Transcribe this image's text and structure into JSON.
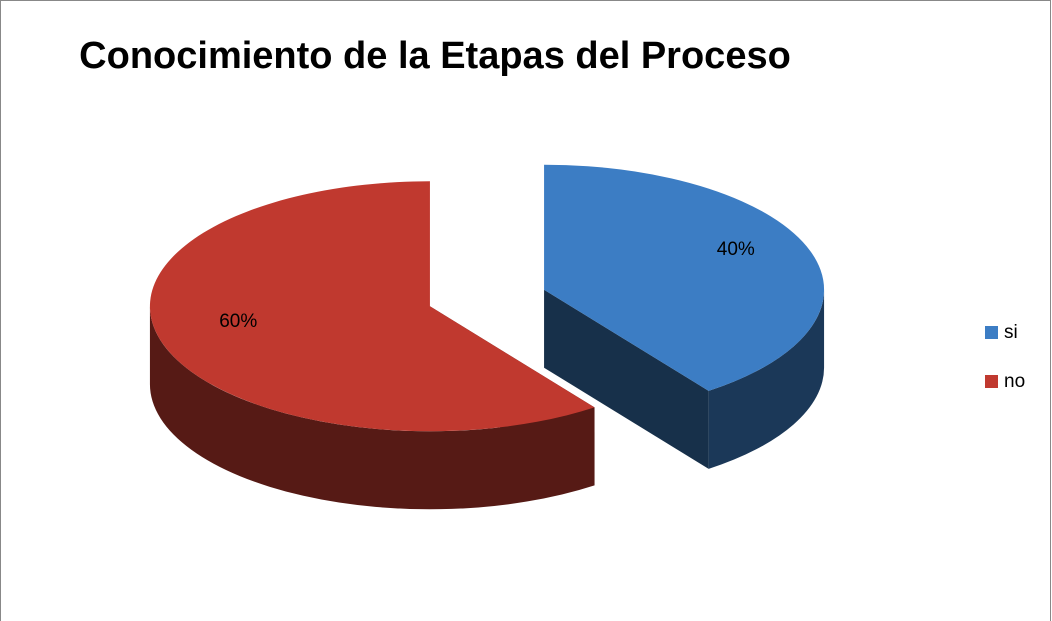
{
  "chart_data": {
    "type": "pie",
    "title": "Conocimiento de la Etapas del Proceso",
    "categories": [
      "si",
      "no"
    ],
    "values": [
      40,
      60
    ],
    "value_labels": [
      "40%",
      "60%"
    ],
    "colors": [
      "#3c7dc4",
      "#c0392f"
    ],
    "legend": "right"
  }
}
